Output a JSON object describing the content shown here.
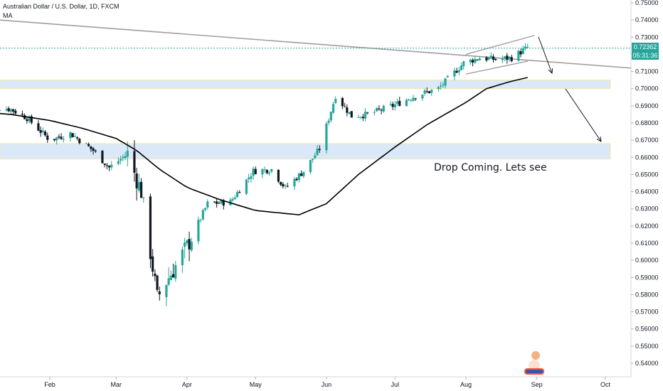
{
  "legend": {
    "symbol": "Australian Dollar / U.S. Dollar, 1D, FXCM",
    "indicator": "MA"
  },
  "price_tag": "0.72362",
  "timer_tag": "05:31:36",
  "annotation": "Drop Coming. Lets see",
  "colors": {
    "up": "#26a69a",
    "down": "#131722",
    "ma": "#000000",
    "zone_fill": "#dbe8f8",
    "zone_border": "#f5e79e",
    "trendline": "#9e9e9e",
    "price_line": "#26a69a",
    "arrow": "#131722"
  },
  "chart_data": {
    "type": "candlestick",
    "title": "Australian Dollar / U.S. Dollar, 1D, FXCM",
    "y_ticks": [
      "0.75000",
      "0.74000",
      "0.73000",
      "0.72000",
      "0.71000",
      "0.70000",
      "0.69000",
      "0.68000",
      "0.67000",
      "0.66000",
      "0.65000",
      "0.64000",
      "0.63000",
      "0.62000",
      "0.61000",
      "0.60000",
      "0.59000",
      "0.58000",
      "0.57000",
      "0.56000",
      "0.55000",
      "0.54000"
    ],
    "x_ticks": [
      "Feb",
      "Mar",
      "Apr",
      "May",
      "Jun",
      "Jul",
      "Aug",
      "Sep",
      "Oct"
    ],
    "ylim": [
      0.535,
      0.752
    ],
    "last_price": 0.72362,
    "zones": [
      {
        "from": 0.7,
        "to": 0.705
      },
      {
        "from": 0.659,
        "to": 0.668
      }
    ],
    "moving_average_anchors": [
      [
        "2020-01-01",
        0.6865
      ],
      [
        "2020-01-15",
        0.685
      ],
      [
        "2020-02-01",
        0.6815
      ],
      [
        "2020-02-15",
        0.677
      ],
      [
        "2020-03-01",
        0.671
      ],
      [
        "2020-03-10",
        0.664
      ],
      [
        "2020-03-20",
        0.653
      ],
      [
        "2020-04-01",
        0.6425
      ],
      [
        "2020-04-15",
        0.6355
      ],
      [
        "2020-05-01",
        0.629
      ],
      [
        "2020-05-20",
        0.6265
      ],
      [
        "2020-06-01",
        0.633
      ],
      [
        "2020-06-15",
        0.65
      ],
      [
        "2020-07-01",
        0.666
      ],
      [
        "2020-07-15",
        0.679
      ],
      [
        "2020-08-01",
        0.692
      ],
      [
        "2020-08-10",
        0.7
      ],
      [
        "2020-08-20",
        0.704
      ],
      [
        "2020-08-28",
        0.7065
      ]
    ],
    "close_anchors": [
      [
        "2020-01-02",
        0.69
      ],
      [
        "2020-01-15",
        0.688
      ],
      [
        "2020-01-22",
        0.683
      ],
      [
        "2020-02-01",
        0.67
      ],
      [
        "2020-02-10",
        0.674
      ],
      [
        "2020-02-20",
        0.664
      ],
      [
        "2020-02-27",
        0.654
      ],
      [
        "2020-03-06",
        0.662
      ],
      [
        "2020-03-12",
        0.64
      ],
      [
        "2020-03-19",
        0.578
      ],
      [
        "2020-03-24",
        0.59
      ],
      [
        "2020-04-01",
        0.608
      ],
      [
        "2020-04-10",
        0.633
      ],
      [
        "2020-04-20",
        0.634
      ],
      [
        "2020-04-30",
        0.652
      ],
      [
        "2020-05-08",
        0.653
      ],
      [
        "2020-05-14",
        0.642
      ],
      [
        "2020-05-22",
        0.652
      ],
      [
        "2020-05-29",
        0.665
      ],
      [
        "2020-06-05",
        0.696
      ],
      [
        "2020-06-12",
        0.684
      ],
      [
        "2020-06-19",
        0.685
      ],
      [
        "2020-06-30",
        0.69
      ],
      [
        "2020-07-10",
        0.696
      ],
      [
        "2020-07-20",
        0.7
      ],
      [
        "2020-07-31",
        0.715
      ],
      [
        "2020-08-07",
        0.718
      ],
      [
        "2020-08-14",
        0.717
      ],
      [
        "2020-08-21",
        0.718
      ],
      [
        "2020-08-28",
        0.724
      ]
    ]
  }
}
